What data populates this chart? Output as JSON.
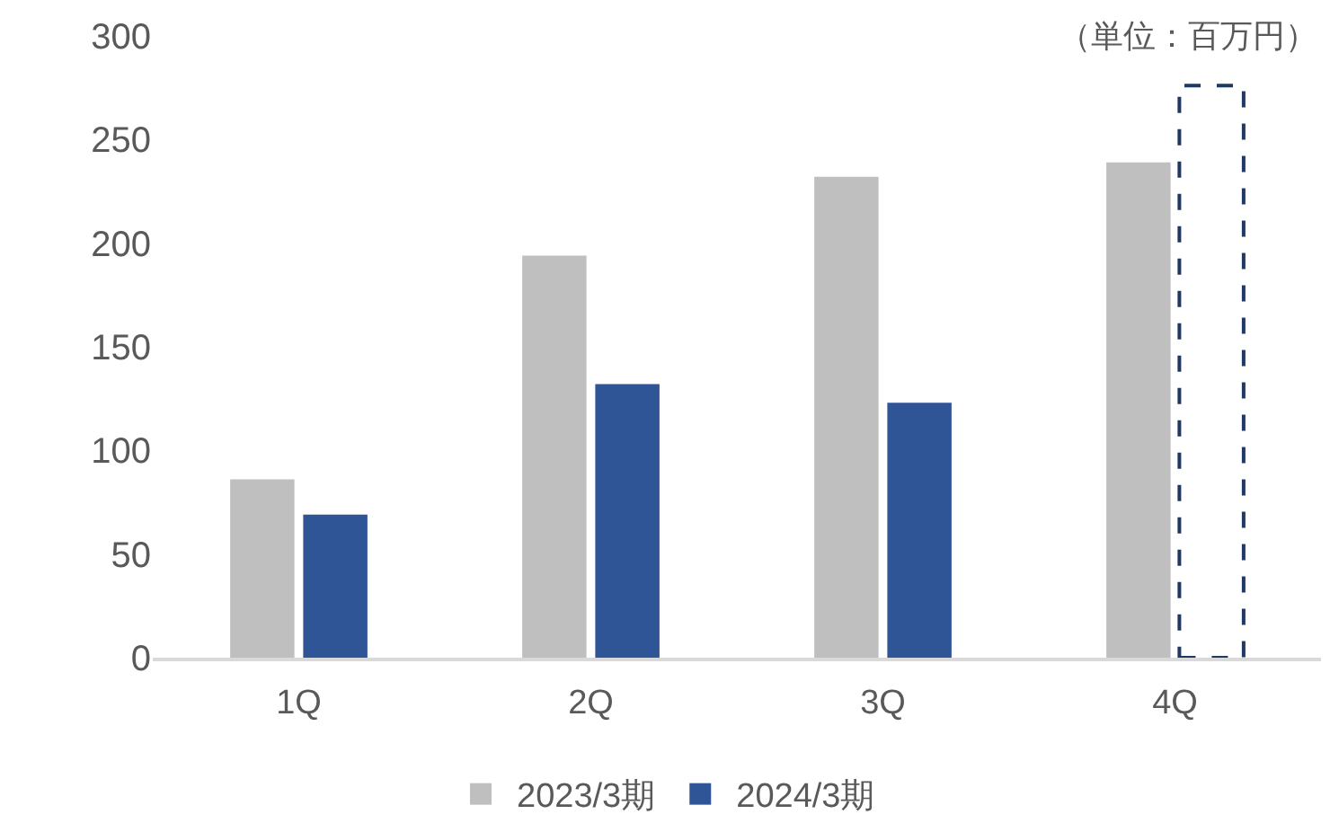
{
  "chart_data": {
    "type": "bar",
    "categories": [
      "1Q",
      "2Q",
      "3Q",
      "4Q"
    ],
    "series": [
      {
        "name": "2023/3期",
        "color": "#bfbfbf",
        "values": [
          86,
          194,
          232,
          239
        ]
      },
      {
        "name": "2024/3期",
        "color": "#2f5597",
        "values": [
          69,
          132,
          123,
          null
        ]
      },
      {
        "color": "#1f3864",
        "values": [
          null,
          null,
          null,
          276
        ],
        "line_style": "dashed"
      }
    ],
    "ylim": [
      0,
      300
    ],
    "yticks": [
      0,
      50,
      100,
      150,
      200,
      250,
      300
    ],
    "annotations": [
      "（単位：百万円）"
    ],
    "legend": "bottom"
  }
}
